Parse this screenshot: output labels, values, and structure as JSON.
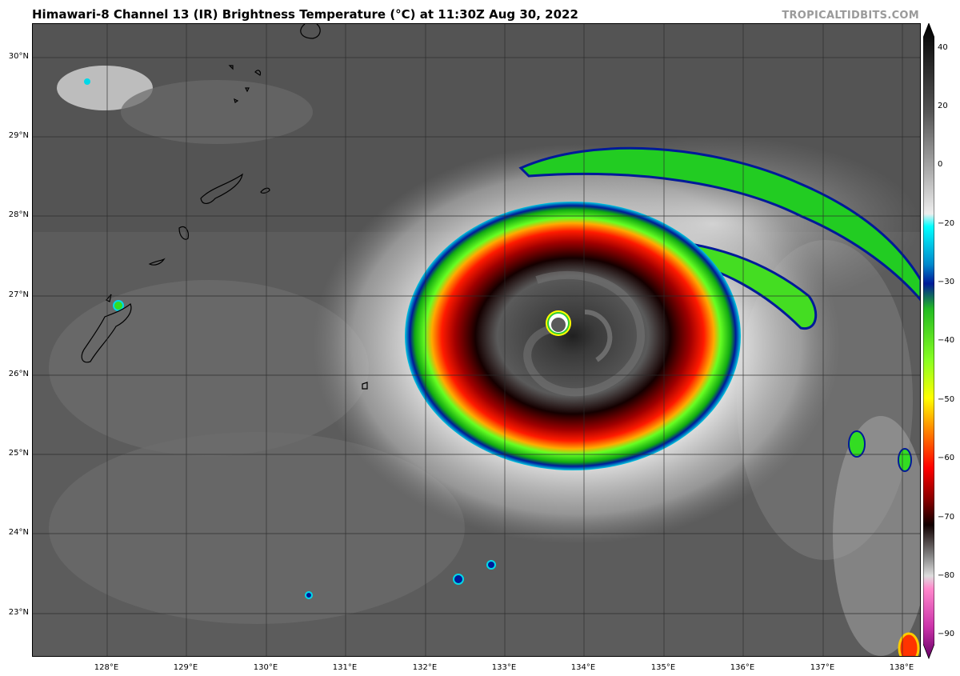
{
  "title": "Himawari-8 Channel 13 (IR) Brightness Temperature (°C) at 11:30Z Aug 30, 2022",
  "credit": "TROPICALTIDBITS.COM",
  "lat_labels": [
    "30°N",
    "29°N",
    "28°N",
    "27°N",
    "26°N",
    "25°N",
    "24°N",
    "23°N"
  ],
  "lon_labels": [
    "128°E",
    "129°E",
    "130°E",
    "131°E",
    "132°E",
    "133°E",
    "134°E",
    "135°E",
    "136°E",
    "137°E",
    "138°E"
  ],
  "colorbar": {
    "labels": [
      "40",
      "20",
      "0",
      "−20",
      "−30",
      "−40",
      "−50",
      "−60",
      "−70",
      "−80",
      "−90"
    ],
    "range": [
      -95,
      45
    ]
  },
  "colors": {
    "cloud_top_gray": "#606060",
    "eye": "#1e1e1e",
    "red": "#cc0000",
    "green": "#22dd22",
    "blue": "#001a99",
    "cyan": "#00d8e8",
    "yellow": "#ffff00"
  }
}
